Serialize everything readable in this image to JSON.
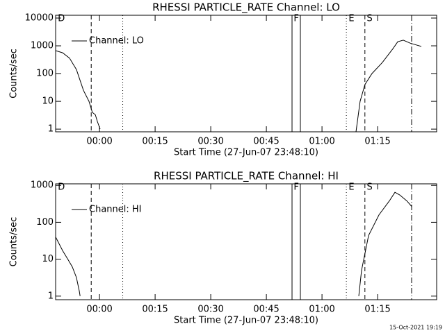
{
  "chart_data": [
    {
      "type": "line",
      "title": "RHESSI PARTICLE_RATE Channel: LO",
      "xlabel": "Start Time (27-Jun-07 23:48:10)",
      "ylabel": "Counts/sec",
      "log_y": true,
      "legend": "upper left",
      "xlim": [
        0,
        102.75
      ],
      "ylim": [
        0.8,
        12600
      ],
      "xticks": [
        {
          "value": 11.83,
          "label": "00:00"
        },
        {
          "value": 26.83,
          "label": "00:15"
        },
        {
          "value": 41.83,
          "label": "00:30"
        },
        {
          "value": 56.83,
          "label": "00:45"
        },
        {
          "value": 71.83,
          "label": "01:00"
        },
        {
          "value": 86.83,
          "label": "01:15"
        }
      ],
      "yticks": [
        1,
        10,
        100,
        1000,
        10000
      ],
      "series": [
        {
          "name": "Channel: LO",
          "color": "#000000",
          "x": [
            0,
            1.9,
            3.75,
            5.6,
            7.5,
            9,
            9.9,
            10.7,
            11.25,
            12,
            null,
            81,
            82.1,
            83.4,
            85.3,
            88.1,
            91,
            92.25,
            93.75,
            95.6,
            97.5,
            98.6
          ],
          "values": [
            670,
            560,
            360,
            140,
            25,
            10,
            4,
            3.3,
            1.9,
            1,
            null,
            0.8,
            10,
            40,
            100,
            250,
            800,
            1400,
            1600,
            1250,
            1050,
            950
          ]
        }
      ],
      "events": [
        {
          "x": 9.6,
          "style": "dashed"
        },
        {
          "x": 18.1,
          "style": "dotted"
        },
        {
          "x": 63.75,
          "style": "solid"
        },
        {
          "x": 66,
          "style": "solid"
        },
        {
          "x": 78.4,
          "style": "dotted"
        },
        {
          "x": 83.4,
          "style": "dashed"
        },
        {
          "x": 96,
          "style": "dashdot"
        }
      ],
      "event_labels": [
        {
          "x": 0.6,
          "label": "D"
        },
        {
          "x": 64.2,
          "label": "F"
        },
        {
          "x": 79,
          "label": "E"
        },
        {
          "x": 83.9,
          "label": "S"
        }
      ]
    },
    {
      "type": "line",
      "title": "RHESSI PARTICLE_RATE Channel: HI",
      "xlabel": "Start Time (27-Jun-07 23:48:10)",
      "ylabel": "Counts/sec",
      "log_y": true,
      "legend": "upper left",
      "xlim": [
        0,
        102.75
      ],
      "ylim": [
        0.8,
        1100
      ],
      "xticks": [
        {
          "value": 11.83,
          "label": "00:00"
        },
        {
          "value": 26.83,
          "label": "00:15"
        },
        {
          "value": 41.83,
          "label": "00:30"
        },
        {
          "value": 56.83,
          "label": "00:45"
        },
        {
          "value": 71.83,
          "label": "01:00"
        },
        {
          "value": 86.83,
          "label": "01:15"
        }
      ],
      "yticks": [
        1,
        10,
        100,
        1000
      ],
      "series": [
        {
          "name": "Channel: HI",
          "color": "#000000",
          "x": [
            0,
            1.9,
            3.4,
            4.5,
            5.6,
            6.4,
            6.6,
            null,
            81.75,
            82.5,
            84.4,
            87.2,
            90,
            91.5,
            92.8,
            94.7,
            96
          ],
          "values": [
            40,
            17,
            9.6,
            6.2,
            3.2,
            1.35,
            1,
            null,
            1,
            5,
            44,
            160,
            380,
            650,
            550,
            380,
            270
          ]
        }
      ],
      "events": [
        {
          "x": 9.6,
          "style": "dashed"
        },
        {
          "x": 18.1,
          "style": "dotted"
        },
        {
          "x": 63.75,
          "style": "solid"
        },
        {
          "x": 66,
          "style": "solid"
        },
        {
          "x": 78.4,
          "style": "dotted"
        },
        {
          "x": 83.4,
          "style": "dashed"
        },
        {
          "x": 96,
          "style": "dashdot"
        }
      ],
      "event_labels": [
        {
          "x": 0.6,
          "label": "D"
        },
        {
          "x": 64.2,
          "label": "F"
        },
        {
          "x": 79,
          "label": "E"
        },
        {
          "x": 83.9,
          "label": "S"
        }
      ]
    }
  ],
  "footer": "15-Oct-2021 19:19"
}
